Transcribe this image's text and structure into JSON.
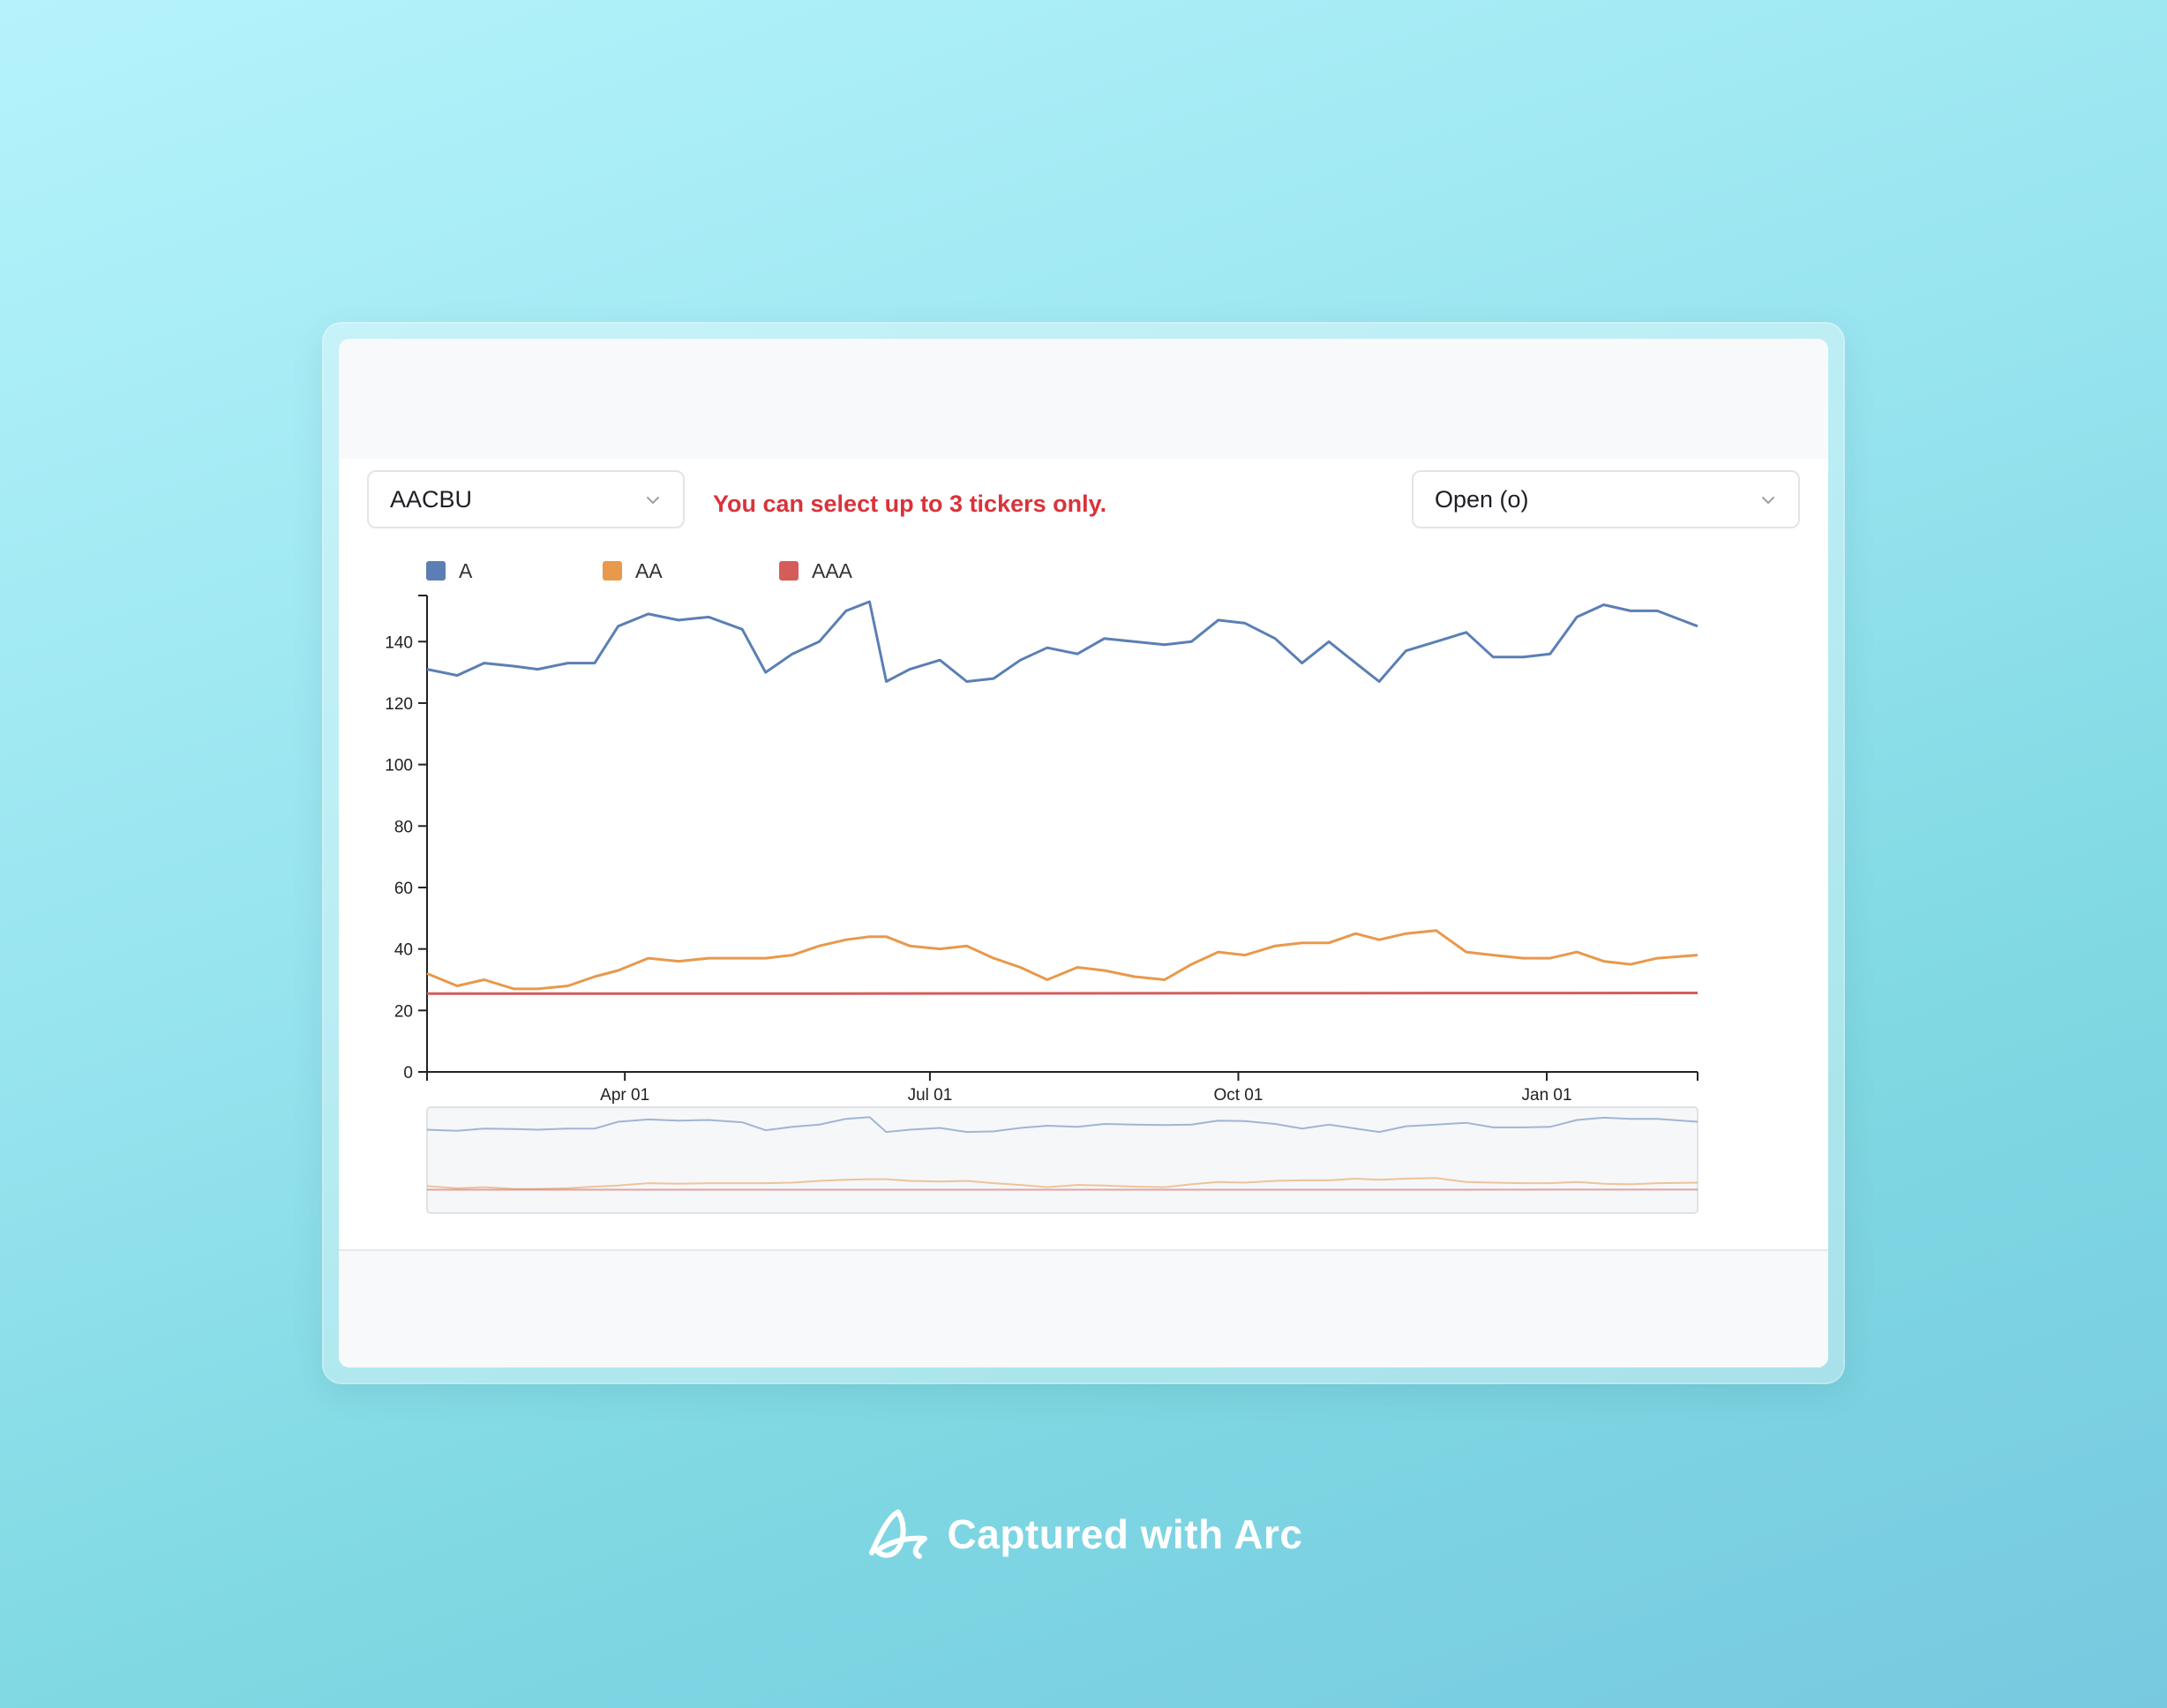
{
  "toolbar": {
    "ticker_select": {
      "value": "AACBU",
      "icon": "chevron-down-icon"
    },
    "warning": "You can select up to 3 tickers only.",
    "metric_select": {
      "value": "Open (o)",
      "icon": "chevron-down-icon"
    }
  },
  "chart_data": {
    "type": "line",
    "title": "",
    "xlabel": "",
    "ylabel": "",
    "x_range": [
      "2023-02-01",
      "2024-02-15"
    ],
    "ylim": [
      0,
      155
    ],
    "y_ticks": [
      0,
      20,
      40,
      60,
      80,
      100,
      120,
      140
    ],
    "x_ticks": [
      {
        "date": "2023-04-01",
        "label": "Apr 01"
      },
      {
        "date": "2023-07-01",
        "label": "Jul 01"
      },
      {
        "date": "2023-10-01",
        "label": "Oct 01"
      },
      {
        "date": "2024-01-01",
        "label": "Jan 01"
      }
    ],
    "legend_position": "top-left",
    "grid": false,
    "brush_overview": true,
    "series": [
      {
        "name": "A",
        "color": "#5b7fb5",
        "points": [
          [
            "2023-02-01",
            131
          ],
          [
            "2023-02-10",
            129
          ],
          [
            "2023-02-18",
            133
          ],
          [
            "2023-02-27",
            132
          ],
          [
            "2023-03-06",
            131
          ],
          [
            "2023-03-15",
            133
          ],
          [
            "2023-03-23",
            133
          ],
          [
            "2023-03-30",
            145
          ],
          [
            "2023-04-08",
            149
          ],
          [
            "2023-04-17",
            147
          ],
          [
            "2023-04-26",
            148
          ],
          [
            "2023-05-06",
            144
          ],
          [
            "2023-05-13",
            130
          ],
          [
            "2023-05-21",
            136
          ],
          [
            "2023-05-29",
            140
          ],
          [
            "2023-06-06",
            150
          ],
          [
            "2023-06-13",
            153
          ],
          [
            "2023-06-18",
            127
          ],
          [
            "2023-06-25",
            131
          ],
          [
            "2023-07-04",
            134
          ],
          [
            "2023-07-12",
            127
          ],
          [
            "2023-07-20",
            128
          ],
          [
            "2023-07-28",
            134
          ],
          [
            "2023-08-05",
            138
          ],
          [
            "2023-08-14",
            136
          ],
          [
            "2023-08-22",
            141
          ],
          [
            "2023-08-31",
            140
          ],
          [
            "2023-09-09",
            139
          ],
          [
            "2023-09-17",
            140
          ],
          [
            "2023-09-25",
            147
          ],
          [
            "2023-10-03",
            146
          ],
          [
            "2023-10-12",
            141
          ],
          [
            "2023-10-20",
            133
          ],
          [
            "2023-10-28",
            140
          ],
          [
            "2023-11-05",
            133
          ],
          [
            "2023-11-12",
            127
          ],
          [
            "2023-11-20",
            137
          ],
          [
            "2023-11-29",
            140
          ],
          [
            "2023-12-08",
            143
          ],
          [
            "2023-12-16",
            135
          ],
          [
            "2023-12-25",
            135
          ],
          [
            "2024-01-02",
            136
          ],
          [
            "2024-01-10",
            148
          ],
          [
            "2024-01-18",
            152
          ],
          [
            "2024-01-26",
            150
          ],
          [
            "2024-02-03",
            150
          ],
          [
            "2024-02-15",
            145
          ]
        ]
      },
      {
        "name": "AA",
        "color": "#e8994b",
        "points": [
          [
            "2023-02-01",
            32
          ],
          [
            "2023-02-10",
            28
          ],
          [
            "2023-02-18",
            30
          ],
          [
            "2023-02-27",
            27
          ],
          [
            "2023-03-06",
            27
          ],
          [
            "2023-03-15",
            28
          ],
          [
            "2023-03-23",
            31
          ],
          [
            "2023-03-30",
            33
          ],
          [
            "2023-04-08",
            37
          ],
          [
            "2023-04-17",
            36
          ],
          [
            "2023-04-26",
            37
          ],
          [
            "2023-05-06",
            37
          ],
          [
            "2023-05-13",
            37
          ],
          [
            "2023-05-21",
            38
          ],
          [
            "2023-05-29",
            41
          ],
          [
            "2023-06-06",
            43
          ],
          [
            "2023-06-13",
            44
          ],
          [
            "2023-06-18",
            44
          ],
          [
            "2023-06-25",
            41
          ],
          [
            "2023-07-04",
            40
          ],
          [
            "2023-07-12",
            41
          ],
          [
            "2023-07-20",
            37
          ],
          [
            "2023-07-28",
            34
          ],
          [
            "2023-08-05",
            30
          ],
          [
            "2023-08-14",
            34
          ],
          [
            "2023-08-22",
            33
          ],
          [
            "2023-08-31",
            31
          ],
          [
            "2023-09-09",
            30
          ],
          [
            "2023-09-17",
            35
          ],
          [
            "2023-09-25",
            39
          ],
          [
            "2023-10-03",
            38
          ],
          [
            "2023-10-12",
            41
          ],
          [
            "2023-10-20",
            42
          ],
          [
            "2023-10-28",
            42
          ],
          [
            "2023-11-05",
            45
          ],
          [
            "2023-11-12",
            43
          ],
          [
            "2023-11-20",
            45
          ],
          [
            "2023-11-29",
            46
          ],
          [
            "2023-12-08",
            39
          ],
          [
            "2023-12-16",
            38
          ],
          [
            "2023-12-25",
            37
          ],
          [
            "2024-01-02",
            37
          ],
          [
            "2024-01-10",
            39
          ],
          [
            "2024-01-18",
            36
          ],
          [
            "2024-01-26",
            35
          ],
          [
            "2024-02-03",
            37
          ],
          [
            "2024-02-15",
            38
          ]
        ]
      },
      {
        "name": "AAA",
        "color": "#d45d5a",
        "points": [
          [
            "2023-02-01",
            25.5
          ],
          [
            "2023-06-01",
            25.5
          ],
          [
            "2023-10-01",
            25.6
          ],
          [
            "2024-02-15",
            25.7
          ]
        ]
      }
    ]
  }
}
